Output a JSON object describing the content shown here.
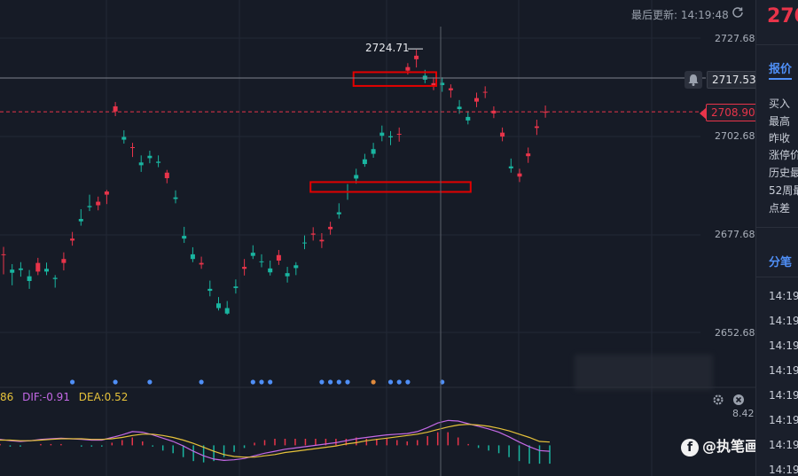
{
  "header": {
    "update_label": "最后更新: 14:19:48"
  },
  "sidebar": {
    "price_partial": "270",
    "tab_quote": "报价",
    "rows": [
      "买入",
      "最高",
      "昨收",
      "涨停价",
      "历史最",
      "52周最",
      "点差"
    ],
    "tab_ticks": "分笔",
    "times": [
      "14:19",
      "14:19",
      "14:19",
      "14:19",
      "14:19",
      "14:19",
      "14:19",
      "14:19"
    ]
  },
  "price_axis": {
    "labels": [
      "2727.68",
      "2702.68",
      "2677.68",
      "2652.68"
    ]
  },
  "tags": {
    "last_price": "2717.53",
    "current_price": "2708.90",
    "high_marker": "2724.71"
  },
  "macd": {
    "prefix": "86",
    "dif_label": "DIF:-0.91",
    "dea_label": "DEA:0.52",
    "axis_value": "8.42"
  },
  "watermark": {
    "text": "@执笔画金"
  },
  "colors": {
    "up": "#e8344a",
    "down": "#19b5a0",
    "background": "#161b26",
    "grid": "#232836",
    "accent": "#4f8ff7",
    "dif": "#c469e6",
    "dea": "#e6c23a",
    "annotation": "#e30000"
  },
  "chart_data": {
    "type": "candlestick",
    "y_axis": {
      "ylim": [
        2642,
        2733
      ],
      "ticks": [
        2727.68,
        2702.68,
        2677.68,
        2652.68
      ]
    },
    "last_price": 2717.53,
    "current_price": 2708.9,
    "high": 2724.71,
    "candles": [
      [
        2672.5,
        2674.5,
        2667.5,
        2672.6
      ],
      [
        2668.7,
        2670.1,
        2664.7,
        2667.9
      ],
      [
        2669.0,
        2670.6,
        2666.9,
        2668.6
      ],
      [
        2667.0,
        2668.6,
        2663.8,
        2665.8
      ],
      [
        2668.2,
        2671.7,
        2667.3,
        2670.4
      ],
      [
        2668.9,
        2670.5,
        2667.3,
        2668.2
      ],
      [
        2666.6,
        2667.3,
        2664.1,
        2666.3
      ],
      [
        2670.4,
        2673.1,
        2668.5,
        2671.4
      ],
      [
        2676.1,
        2678.3,
        2674.8,
        2676.6
      ],
      [
        2681.6,
        2684.1,
        2679.9,
        2681.0
      ],
      [
        2684.9,
        2687.8,
        2683.6,
        2684.6
      ],
      [
        2685.1,
        2687.3,
        2683.8,
        2686.0
      ],
      [
        2687.8,
        2689.0,
        2685.4,
        2688.6
      ],
      [
        2709.0,
        2711.4,
        2707.8,
        2710.3
      ],
      [
        2702.5,
        2704.2,
        2700.8,
        2701.8
      ],
      [
        2699.7,
        2701.0,
        2697.4,
        2699.9
      ],
      [
        2696.0,
        2697.8,
        2693.6,
        2695.3
      ],
      [
        2697.7,
        2699.0,
        2695.8,
        2697.1
      ],
      [
        2696.2,
        2697.8,
        2694.8,
        2695.9
      ],
      [
        2692.0,
        2694.1,
        2690.7,
        2693.4
      ],
      [
        2687.1,
        2688.9,
        2685.6,
        2686.7
      ],
      [
        2677.3,
        2679.6,
        2675.5,
        2676.6
      ],
      [
        2672.6,
        2674.4,
        2670.6,
        2671.4
      ],
      [
        2670.0,
        2672.0,
        2668.9,
        2670.4
      ],
      [
        2663.8,
        2665.9,
        2661.9,
        2663.3
      ],
      [
        2660.1,
        2661.7,
        2658.3,
        2658.9
      ],
      [
        2658.9,
        2660.7,
        2657.2,
        2657.5
      ],
      [
        2664.4,
        2666.2,
        2662.6,
        2664.0
      ],
      [
        2668.9,
        2671.4,
        2667.2,
        2669.4
      ],
      [
        2673.0,
        2674.9,
        2671.4,
        2672.2
      ],
      [
        2670.8,
        2672.6,
        2669.3,
        2670.6
      ],
      [
        2669.0,
        2671.0,
        2667.2,
        2668.0
      ],
      [
        2671.0,
        2673.7,
        2669.9,
        2672.4
      ],
      [
        2667.8,
        2669.4,
        2665.4,
        2667.0
      ],
      [
        2669.8,
        2670.6,
        2667.3,
        2669.1
      ],
      [
        2675.6,
        2677.4,
        2673.9,
        2675.4
      ],
      [
        2677.6,
        2679.5,
        2676.1,
        2677.9
      ],
      [
        2675.9,
        2678.0,
        2674.2,
        2676.3
      ],
      [
        2679.0,
        2680.9,
        2677.6,
        2679.6
      ],
      [
        2683.3,
        2685.6,
        2681.7,
        2682.8
      ],
      [
        2688.7,
        2690.5,
        2686.5,
        2688.6
      ],
      [
        2692.8,
        2694.4,
        2690.6,
        2691.9
      ],
      [
        2696.8,
        2698.2,
        2694.9,
        2695.6
      ],
      [
        2699.4,
        2701.0,
        2697.2,
        2698.2
      ],
      [
        2703.6,
        2705.4,
        2701.4,
        2702.8
      ],
      [
        2702.7,
        2704.0,
        2700.4,
        2702.4
      ],
      [
        2703.2,
        2704.9,
        2701.3,
        2703.3
      ],
      [
        2719.4,
        2721.3,
        2718.4,
        2720.3
      ],
      [
        2722.3,
        2724.7,
        2720.2,
        2723.2
      ],
      [
        2718.1,
        2719.6,
        2716.2,
        2717.1
      ],
      [
        2715.7,
        2717.7,
        2714.4,
        2716.2
      ],
      [
        2716.3,
        2717.7,
        2714.0,
        2715.7
      ],
      [
        2714.4,
        2715.9,
        2712.5,
        2714.9
      ],
      [
        2710.2,
        2711.9,
        2708.4,
        2709.6
      ],
      [
        2707.6,
        2709.1,
        2705.7,
        2706.7
      ],
      [
        2711.5,
        2713.8,
        2710.1,
        2712.4
      ],
      [
        2713.8,
        2715.4,
        2712.4,
        2714.0
      ],
      [
        2708.5,
        2710.3,
        2707.3,
        2709.2
      ],
      [
        2702.6,
        2704.9,
        2701.4,
        2703.6
      ],
      [
        2695.0,
        2697.0,
        2693.4,
        2694.5
      ],
      [
        2692.4,
        2694.4,
        2691.0,
        2693.2
      ],
      [
        2697.6,
        2699.8,
        2695.9,
        2698.3
      ],
      [
        2704.8,
        2706.9,
        2703.0,
        2705.2
      ],
      [
        2708.9,
        2710.5,
        2707.4,
        2708.9
      ]
    ],
    "macd": {
      "ylim": [
        -4,
        6
      ],
      "dif": [
        0.9,
        0.7,
        0.6,
        0.7,
        0.9,
        1.0,
        1.1,
        1.0,
        0.9,
        0.8,
        0.8,
        1.2,
        1.6,
        2.1,
        2.0,
        1.6,
        1.1,
        0.6,
        -0.1,
        -0.9,
        -1.6,
        -2.1,
        -2.3,
        -2.2,
        -2.0,
        -1.6,
        -1.2,
        -0.9,
        -0.6,
        -0.4,
        -0.2,
        0.0,
        0.2,
        0.4,
        0.7,
        1.0,
        1.2,
        1.4,
        1.6,
        1.7,
        1.8,
        2.1,
        2.7,
        3.4,
        3.8,
        3.7,
        3.3,
        2.9,
        2.5,
        2.0,
        1.3,
        0.5,
        -0.2,
        -0.8,
        -0.9
      ],
      "dea": [
        0.8,
        0.8,
        0.7,
        0.7,
        0.8,
        0.9,
        1.0,
        1.0,
        1.0,
        0.9,
        0.9,
        1.0,
        1.2,
        1.5,
        1.7,
        1.7,
        1.5,
        1.2,
        0.8,
        0.3,
        -0.3,
        -0.9,
        -1.4,
        -1.7,
        -1.8,
        -1.8,
        -1.6,
        -1.4,
        -1.1,
        -0.9,
        -0.7,
        -0.5,
        -0.3,
        -0.1,
        0.2,
        0.4,
        0.7,
        0.9,
        1.1,
        1.3,
        1.5,
        1.7,
        2.0,
        2.4,
        2.8,
        3.1,
        3.2,
        3.1,
        2.9,
        2.6,
        2.2,
        1.7,
        1.2,
        0.6,
        0.5
      ],
      "histogram": [
        0.2,
        -0.2,
        -0.2,
        0.0,
        0.2,
        0.2,
        0.2,
        0.0,
        -0.2,
        -0.2,
        -0.2,
        0.4,
        0.8,
        1.2,
        0.6,
        -0.2,
        -0.8,
        -1.2,
        -1.8,
        -2.4,
        -2.6,
        -2.4,
        -1.8,
        -1.0,
        -0.4,
        0.4,
        0.8,
        1.0,
        1.0,
        1.0,
        1.0,
        1.0,
        1.0,
        1.0,
        1.0,
        1.2,
        1.0,
        1.0,
        1.0,
        0.8,
        0.6,
        0.8,
        1.4,
        2.0,
        2.0,
        1.2,
        0.2,
        -0.4,
        -0.8,
        -1.2,
        -1.8,
        -2.4,
        -2.8,
        -2.8,
        -2.8
      ]
    },
    "signal_dots": [
      {
        "index": 8,
        "color": "blue"
      },
      {
        "index": 13,
        "color": "blue"
      },
      {
        "index": 17,
        "color": "blue"
      },
      {
        "index": 23,
        "color": "blue"
      },
      {
        "index": 29,
        "color": "blue"
      },
      {
        "index": 30,
        "color": "blue"
      },
      {
        "index": 31,
        "color": "blue"
      },
      {
        "index": 37,
        "color": "blue"
      },
      {
        "index": 38,
        "color": "blue"
      },
      {
        "index": 39,
        "color": "blue"
      },
      {
        "index": 40,
        "color": "blue"
      },
      {
        "index": 43,
        "color": "orange"
      },
      {
        "index": 45,
        "color": "blue"
      },
      {
        "index": 46,
        "color": "blue"
      },
      {
        "index": 47,
        "color": "blue"
      },
      {
        "index": 51,
        "color": "blue"
      }
    ],
    "annotations": [
      {
        "type": "rect",
        "price_top": 2719.0,
        "price_bottom": 2715.5,
        "start_index": 41,
        "end_index": 50
      },
      {
        "type": "rect",
        "price_top": 2691.0,
        "price_bottom": 2688.5,
        "start_index": 36,
        "end_index": 54
      }
    ],
    "crosshair_index": 50,
    "grid": true
  }
}
